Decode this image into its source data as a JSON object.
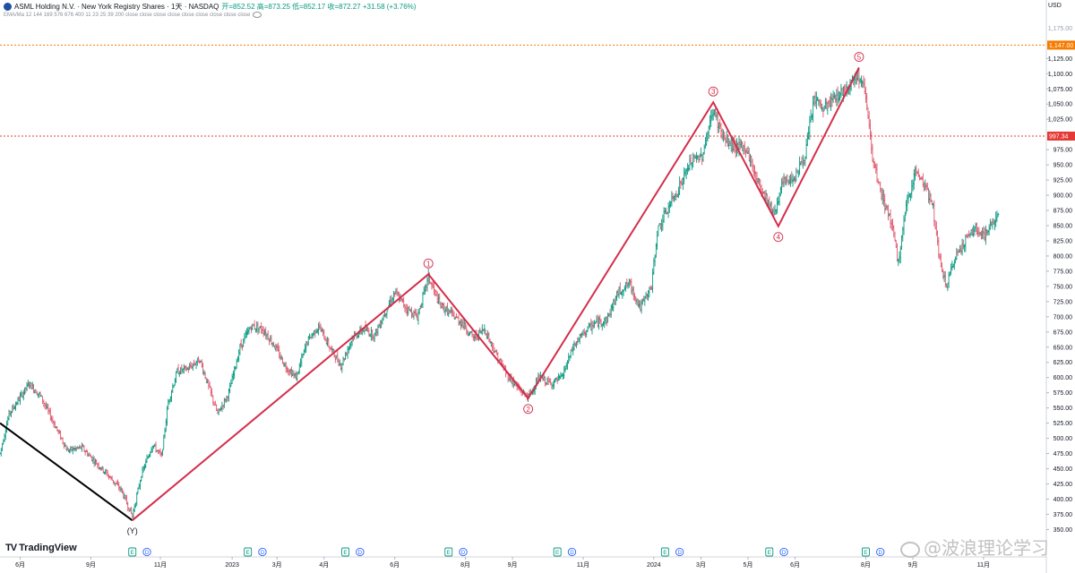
{
  "header": {
    "symbol": "ASML Holding N.V. · New York Registry Shares · 1天 · NASDAQ",
    "ohlc": "开=852.52 高=873.25 低=852.17 收=872.27 +31.58 (+3.76%)",
    "indicator": "EMA/Ma 12 144 169 576 676 400 11 23 25 39 200 close close close close close close close close close",
    "up_color": "#089981"
  },
  "currency": "USD",
  "brand": "TradingView",
  "watermark": "@波浪理论学习",
  "chart_data": {
    "type": "line",
    "title": "",
    "currency": "USD",
    "y_axis": {
      "ticks": [
        350,
        375,
        400,
        425,
        450,
        475,
        500,
        525,
        550,
        575,
        600,
        625,
        650,
        675,
        700,
        725,
        750,
        775,
        800,
        825,
        850,
        875,
        900,
        925,
        950,
        975,
        1025,
        1050,
        1075,
        1100,
        1125
      ],
      "tick_labels": [
        "350.00",
        "375.00",
        "400.00",
        "425.00",
        "450.00",
        "475.00",
        "500.00",
        "525.00",
        "550.00",
        "575.00",
        "600.00",
        "625.00",
        "650.00",
        "675.00",
        "700.00",
        "725.00",
        "750.00",
        "775.00",
        "800.00",
        "825.00",
        "850.00",
        "875.00",
        "900.00",
        "925.00",
        "950.00",
        "975.00",
        "1,025.00",
        "1,050.00",
        "1,075.00",
        "1,100.00",
        "1,125.00"
      ],
      "range": [
        330,
        1180
      ],
      "position": "right"
    },
    "x_axis": {
      "labels": [
        "6月",
        "9月",
        "11月",
        "2023",
        "3月",
        "4月",
        "6月",
        "8月",
        "9月",
        "11月",
        "2024",
        "3月",
        "5月",
        "6月",
        "8月",
        "9月",
        "11月"
      ],
      "day_index": [
        0,
        63,
        125,
        189,
        229,
        271,
        334,
        397,
        439,
        502,
        565,
        607,
        649,
        691,
        754,
        796,
        859
      ],
      "range": [
        -18,
        915
      ]
    },
    "horizontal_lines": [
      {
        "value": 1147.0,
        "label": "1,147.00",
        "color": "#f57c00",
        "style": "dotted"
      },
      {
        "value": 997.34,
        "label": "997.34",
        "color": "#e53935",
        "style": "dotted"
      }
    ],
    "waves": [
      {
        "name": "(Y)",
        "color": "#000000",
        "points": [
          {
            "day": -18,
            "value": 525
          },
          {
            "day": 100,
            "value": 365
          }
        ]
      },
      {
        "name": "impulse",
        "color": "#d32f4a",
        "points": [
          {
            "day": 100,
            "value": 365,
            "label": "(Y)"
          },
          {
            "day": 364,
            "value": 770,
            "label": "1"
          },
          {
            "day": 453,
            "value": 566,
            "label": "2"
          },
          {
            "day": 618,
            "value": 1053,
            "label": "3"
          },
          {
            "day": 676,
            "value": 849,
            "label": "4"
          },
          {
            "day": 748,
            "value": 1110,
            "label": "5"
          }
        ]
      }
    ],
    "price_path": [
      {
        "day": -18,
        "value": 475
      },
      {
        "day": -10,
        "value": 540
      },
      {
        "day": 8,
        "value": 590
      },
      {
        "day": 18,
        "value": 570
      },
      {
        "day": 30,
        "value": 525
      },
      {
        "day": 42,
        "value": 480
      },
      {
        "day": 55,
        "value": 485
      },
      {
        "day": 65,
        "value": 465
      },
      {
        "day": 78,
        "value": 440
      },
      {
        "day": 90,
        "value": 415
      },
      {
        "day": 100,
        "value": 372
      },
      {
        "day": 108,
        "value": 440
      },
      {
        "day": 118,
        "value": 490
      },
      {
        "day": 126,
        "value": 470
      },
      {
        "day": 132,
        "value": 560
      },
      {
        "day": 140,
        "value": 610
      },
      {
        "day": 150,
        "value": 615
      },
      {
        "day": 160,
        "value": 630
      },
      {
        "day": 168,
        "value": 585
      },
      {
        "day": 176,
        "value": 540
      },
      {
        "day": 186,
        "value": 575
      },
      {
        "day": 196,
        "value": 650
      },
      {
        "day": 206,
        "value": 685
      },
      {
        "day": 216,
        "value": 680
      },
      {
        "day": 226,
        "value": 655
      },
      {
        "day": 236,
        "value": 620
      },
      {
        "day": 246,
        "value": 600
      },
      {
        "day": 256,
        "value": 660
      },
      {
        "day": 266,
        "value": 685
      },
      {
        "day": 276,
        "value": 650
      },
      {
        "day": 286,
        "value": 620
      },
      {
        "day": 296,
        "value": 665
      },
      {
        "day": 306,
        "value": 680
      },
      {
        "day": 316,
        "value": 670
      },
      {
        "day": 326,
        "value": 710
      },
      {
        "day": 334,
        "value": 740
      },
      {
        "day": 344,
        "value": 715
      },
      {
        "day": 354,
        "value": 700
      },
      {
        "day": 364,
        "value": 765
      },
      {
        "day": 374,
        "value": 720
      },
      {
        "day": 384,
        "value": 705
      },
      {
        "day": 394,
        "value": 690
      },
      {
        "day": 404,
        "value": 665
      },
      {
        "day": 414,
        "value": 680
      },
      {
        "day": 424,
        "value": 640
      },
      {
        "day": 434,
        "value": 605
      },
      {
        "day": 445,
        "value": 580
      },
      {
        "day": 453,
        "value": 568
      },
      {
        "day": 463,
        "value": 600
      },
      {
        "day": 473,
        "value": 590
      },
      {
        "day": 483,
        "value": 600
      },
      {
        "day": 493,
        "value": 650
      },
      {
        "day": 503,
        "value": 675
      },
      {
        "day": 513,
        "value": 690
      },
      {
        "day": 523,
        "value": 695
      },
      {
        "day": 533,
        "value": 740
      },
      {
        "day": 543,
        "value": 755
      },
      {
        "day": 553,
        "value": 715
      },
      {
        "day": 563,
        "value": 750
      },
      {
        "day": 568,
        "value": 840
      },
      {
        "day": 578,
        "value": 880
      },
      {
        "day": 588,
        "value": 915
      },
      {
        "day": 598,
        "value": 955
      },
      {
        "day": 608,
        "value": 965
      },
      {
        "day": 618,
        "value": 1040
      },
      {
        "day": 628,
        "value": 990
      },
      {
        "day": 638,
        "value": 980
      },
      {
        "day": 648,
        "value": 975
      },
      {
        "day": 656,
        "value": 930
      },
      {
        "day": 664,
        "value": 900
      },
      {
        "day": 672,
        "value": 870
      },
      {
        "day": 680,
        "value": 920
      },
      {
        "day": 690,
        "value": 930
      },
      {
        "day": 700,
        "value": 965
      },
      {
        "day": 708,
        "value": 1060
      },
      {
        "day": 716,
        "value": 1040
      },
      {
        "day": 726,
        "value": 1060
      },
      {
        "day": 736,
        "value": 1075
      },
      {
        "day": 746,
        "value": 1100
      },
      {
        "day": 754,
        "value": 1070
      },
      {
        "day": 760,
        "value": 955
      },
      {
        "day": 768,
        "value": 900
      },
      {
        "day": 776,
        "value": 860
      },
      {
        "day": 783,
        "value": 790
      },
      {
        "day": 790,
        "value": 880
      },
      {
        "day": 798,
        "value": 940
      },
      {
        "day": 806,
        "value": 920
      },
      {
        "day": 814,
        "value": 880
      },
      {
        "day": 820,
        "value": 790
      },
      {
        "day": 826,
        "value": 750
      },
      {
        "day": 834,
        "value": 800
      },
      {
        "day": 844,
        "value": 830
      },
      {
        "day": 852,
        "value": 845
      },
      {
        "day": 860,
        "value": 835
      },
      {
        "day": 866,
        "value": 850
      },
      {
        "day": 872,
        "value": 872
      }
    ],
    "event_markers": [
      {
        "day": 100,
        "kind": "E"
      },
      {
        "day": 113,
        "kind": "D"
      },
      {
        "day": 203,
        "kind": "E"
      },
      {
        "day": 216,
        "kind": "D"
      },
      {
        "day": 290,
        "kind": "E"
      },
      {
        "day": 303,
        "kind": "D"
      },
      {
        "day": 382,
        "kind": "E"
      },
      {
        "day": 395,
        "kind": "D"
      },
      {
        "day": 479,
        "kind": "E"
      },
      {
        "day": 492,
        "kind": "D"
      },
      {
        "day": 575,
        "kind": "E"
      },
      {
        "day": 588,
        "kind": "D"
      },
      {
        "day": 668,
        "kind": "E"
      },
      {
        "day": 681,
        "kind": "D"
      },
      {
        "day": 754,
        "kind": "E"
      },
      {
        "day": 767,
        "kind": "D"
      }
    ],
    "colors": {
      "up": "#089981",
      "down": "#e0576d",
      "wave": "#d32f4a"
    }
  }
}
